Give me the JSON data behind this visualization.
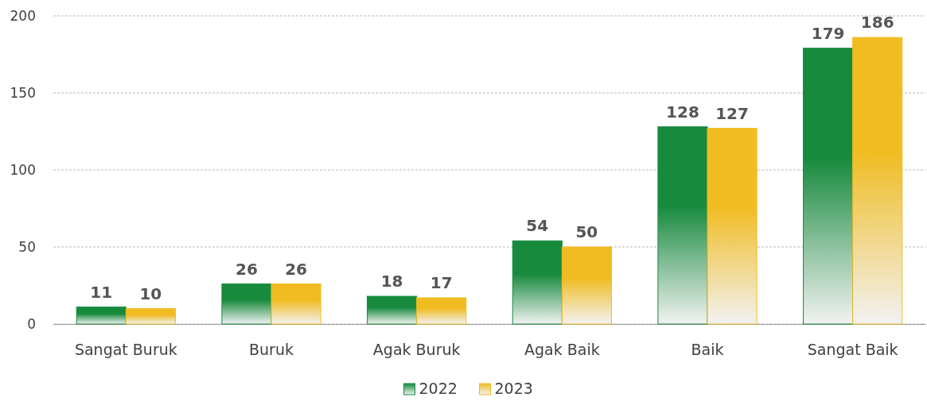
{
  "chart_data": {
    "type": "bar",
    "categories": [
      "Sangat Buruk",
      "Buruk",
      "Agak Buruk",
      "Agak Baik",
      "Baik",
      "Sangat Baik"
    ],
    "series": [
      {
        "name": "2022",
        "color": "#178a3e",
        "values": [
          11,
          26,
          18,
          54,
          128,
          179
        ]
      },
      {
        "name": "2023",
        "color": "#f0bc22",
        "values": [
          10,
          26,
          17,
          50,
          127,
          186
        ]
      }
    ],
    "ylim": [
      0,
      200
    ],
    "yticks": [
      0,
      50,
      100,
      150,
      200
    ],
    "grid": "y",
    "legend": "bottom",
    "data_labels": true
  }
}
